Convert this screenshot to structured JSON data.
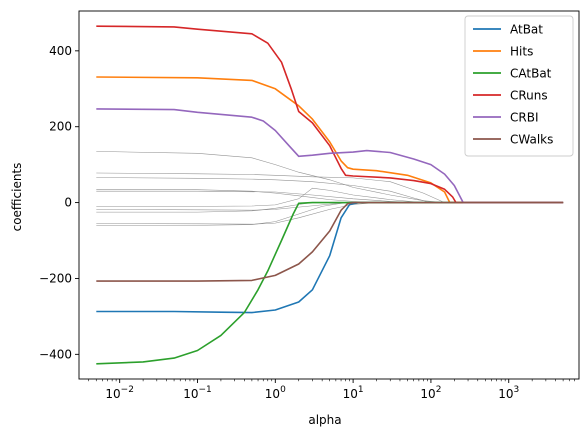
{
  "chart_data": {
    "type": "line",
    "xscale": "log",
    "xlabel": "alpha",
    "ylabel": "coefficients",
    "xlim": [
      0.003,
      8000
    ],
    "ylim": [
      -465,
      505
    ],
    "x_ticks": [
      {
        "value": 0.01,
        "base": "10",
        "exp": "−2"
      },
      {
        "value": 0.1,
        "base": "10",
        "exp": "−1"
      },
      {
        "value": 1,
        "base": "10",
        "exp": "0"
      },
      {
        "value": 10,
        "base": "10",
        "exp": "1"
      },
      {
        "value": 100,
        "base": "10",
        "exp": "2"
      },
      {
        "value": 1000,
        "base": "10",
        "exp": "3"
      }
    ],
    "y_ticks": [
      {
        "value": 400,
        "label": "400"
      },
      {
        "value": 200,
        "label": "200"
      },
      {
        "value": 0,
        "label": "0"
      },
      {
        "value": -200,
        "label": "−200"
      },
      {
        "value": -400,
        "label": "−400"
      }
    ],
    "grid": false,
    "legend_position": "top-right",
    "series": [
      {
        "name": "AtBat",
        "color": "#1f77b4",
        "points": [
          [
            0.005,
            -287
          ],
          [
            0.05,
            -287
          ],
          [
            0.2,
            -289
          ],
          [
            0.5,
            -290
          ],
          [
            1,
            -283
          ],
          [
            2,
            -262
          ],
          [
            3,
            -230
          ],
          [
            5,
            -140
          ],
          [
            7,
            -40
          ],
          [
            9,
            -5
          ],
          [
            12,
            0
          ],
          [
            5000,
            0
          ]
        ]
      },
      {
        "name": "Hits",
        "color": "#ff7f0e",
        "points": [
          [
            0.005,
            331
          ],
          [
            0.1,
            329
          ],
          [
            0.5,
            322
          ],
          [
            1,
            300
          ],
          [
            2,
            255
          ],
          [
            3,
            220
          ],
          [
            5,
            160
          ],
          [
            7,
            110
          ],
          [
            8.5,
            92
          ],
          [
            10,
            88
          ],
          [
            20,
            84
          ],
          [
            50,
            72
          ],
          [
            100,
            52
          ],
          [
            150,
            28
          ],
          [
            175,
            0
          ],
          [
            5000,
            0
          ]
        ]
      },
      {
        "name": "CAtBat",
        "color": "#2ca02c",
        "points": [
          [
            0.005,
            -425
          ],
          [
            0.02,
            -420
          ],
          [
            0.05,
            -410
          ],
          [
            0.1,
            -390
          ],
          [
            0.2,
            -350
          ],
          [
            0.4,
            -290
          ],
          [
            0.6,
            -230
          ],
          [
            0.8,
            -180
          ],
          [
            1.2,
            -100
          ],
          [
            1.7,
            -30
          ],
          [
            2,
            -2
          ],
          [
            3,
            0
          ],
          [
            5000,
            0
          ]
        ]
      },
      {
        "name": "CRuns",
        "color": "#d62728",
        "points": [
          [
            0.005,
            465
          ],
          [
            0.05,
            463
          ],
          [
            0.1,
            457
          ],
          [
            0.5,
            445
          ],
          [
            0.8,
            420
          ],
          [
            1.2,
            370
          ],
          [
            1.6,
            300
          ],
          [
            2,
            240
          ],
          [
            3,
            210
          ],
          [
            5,
            150
          ],
          [
            7,
            90
          ],
          [
            8,
            72
          ],
          [
            10,
            70
          ],
          [
            30,
            65
          ],
          [
            60,
            58
          ],
          [
            100,
            50
          ],
          [
            150,
            35
          ],
          [
            190,
            15
          ],
          [
            210,
            0
          ],
          [
            5000,
            0
          ]
        ]
      },
      {
        "name": "CRBI",
        "color": "#9467bd",
        "points": [
          [
            0.005,
            247
          ],
          [
            0.05,
            245
          ],
          [
            0.1,
            238
          ],
          [
            0.5,
            225
          ],
          [
            0.7,
            215
          ],
          [
            1,
            190
          ],
          [
            1.5,
            150
          ],
          [
            2,
            122
          ],
          [
            3,
            125
          ],
          [
            5,
            130
          ],
          [
            10,
            133
          ],
          [
            15,
            137
          ],
          [
            30,
            132
          ],
          [
            60,
            115
          ],
          [
            100,
            100
          ],
          [
            150,
            75
          ],
          [
            200,
            45
          ],
          [
            260,
            0
          ],
          [
            5000,
            0
          ]
        ]
      },
      {
        "name": "CWalks",
        "color": "#8c564b",
        "points": [
          [
            0.005,
            -207
          ],
          [
            0.1,
            -207
          ],
          [
            0.5,
            -205
          ],
          [
            1,
            -192
          ],
          [
            2,
            -162
          ],
          [
            3,
            -130
          ],
          [
            5,
            -75
          ],
          [
            7,
            -20
          ],
          [
            8.5,
            -3
          ],
          [
            10,
            0
          ],
          [
            5000,
            0
          ]
        ]
      }
    ],
    "other_series_color": "#808080",
    "other_series": [
      [
        [
          0.005,
          135
        ],
        [
          0.1,
          130
        ],
        [
          0.5,
          118
        ],
        [
          1,
          100
        ],
        [
          2,
          80
        ],
        [
          5,
          60
        ],
        [
          10,
          40
        ],
        [
          30,
          20
        ],
        [
          80,
          5
        ],
        [
          150,
          0
        ],
        [
          5000,
          0
        ]
      ],
      [
        [
          0.005,
          78
        ],
        [
          0.1,
          76
        ],
        [
          0.5,
          74
        ],
        [
          1,
          72
        ],
        [
          3,
          68
        ],
        [
          10,
          65
        ],
        [
          30,
          55
        ],
        [
          80,
          25
        ],
        [
          150,
          0
        ],
        [
          5000,
          0
        ]
      ],
      [
        [
          0.005,
          66
        ],
        [
          0.1,
          64
        ],
        [
          0.5,
          62
        ],
        [
          1,
          60
        ],
        [
          3,
          55
        ],
        [
          10,
          45
        ],
        [
          30,
          30
        ],
        [
          60,
          12
        ],
        [
          100,
          0
        ],
        [
          5000,
          0
        ]
      ],
      [
        [
          0.005,
          35
        ],
        [
          0.1,
          34
        ],
        [
          0.5,
          30
        ],
        [
          1,
          25
        ],
        [
          2,
          18
        ],
        [
          5,
          8
        ],
        [
          10,
          3
        ],
        [
          20,
          0
        ],
        [
          5000,
          0
        ]
      ],
      [
        [
          0.005,
          30
        ],
        [
          0.1,
          30
        ],
        [
          1,
          28
        ],
        [
          3,
          20
        ],
        [
          10,
          10
        ],
        [
          30,
          3
        ],
        [
          60,
          0
        ],
        [
          5000,
          0
        ]
      ],
      [
        [
          0.005,
          -10
        ],
        [
          0.1,
          -10
        ],
        [
          0.5,
          -9
        ],
        [
          1,
          -6
        ],
        [
          2,
          10
        ],
        [
          3,
          38
        ],
        [
          5,
          32
        ],
        [
          10,
          20
        ],
        [
          30,
          8
        ],
        [
          80,
          0
        ],
        [
          5000,
          0
        ]
      ],
      [
        [
          0.005,
          -18
        ],
        [
          0.1,
          -19
        ],
        [
          0.5,
          -20
        ],
        [
          1,
          -18
        ],
        [
          2,
          -12
        ],
        [
          5,
          -4
        ],
        [
          10,
          0
        ],
        [
          5000,
          0
        ]
      ],
      [
        [
          0.005,
          -25
        ],
        [
          0.1,
          -25
        ],
        [
          0.5,
          -22
        ],
        [
          1,
          -15
        ],
        [
          2,
          -5
        ],
        [
          3,
          0
        ],
        [
          5000,
          0
        ]
      ],
      [
        [
          0.005,
          -55
        ],
        [
          0.1,
          -56
        ],
        [
          0.5,
          -57
        ],
        [
          1,
          -54
        ],
        [
          2,
          -40
        ],
        [
          5,
          -18
        ],
        [
          10,
          -5
        ],
        [
          20,
          0
        ],
        [
          5000,
          0
        ]
      ],
      [
        [
          0.005,
          -60
        ],
        [
          0.1,
          -60
        ],
        [
          0.5,
          -58
        ],
        [
          1,
          -50
        ],
        [
          2,
          -30
        ],
        [
          4,
          -10
        ],
        [
          8,
          0
        ],
        [
          5000,
          0
        ]
      ]
    ]
  }
}
